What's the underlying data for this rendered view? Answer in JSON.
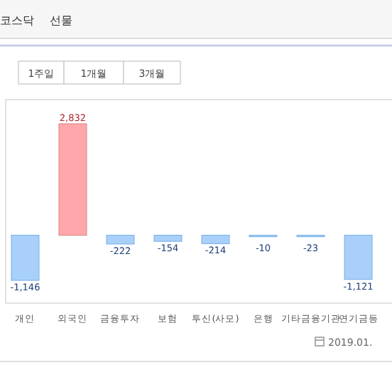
{
  "chart_data": {
    "type": "bar",
    "categories": [
      "개인",
      "외국인",
      "금융투자",
      "보험",
      "투신(사모)",
      "은행",
      "기타금융기관",
      "연기금등"
    ],
    "values": [
      -1146,
      2832,
      -222,
      -154,
      -214,
      -10,
      -23,
      -1121
    ],
    "value_labels": [
      "-1,146",
      "2,832",
      "-222",
      "-154",
      "-214",
      "-10",
      "-23",
      "-1,121"
    ],
    "colors": [
      "#a9d0f8",
      "#ffa7aa",
      "#a9d0f8",
      "#a9d0f8",
      "#a9d0f8",
      "#a9d0f8",
      "#a9d0f8",
      "#a9d0f8"
    ],
    "annotations": [
      "코스닥",
      "선물",
      "1주일",
      "1개월",
      "3개월",
      "2019.01."
    ]
  }
}
